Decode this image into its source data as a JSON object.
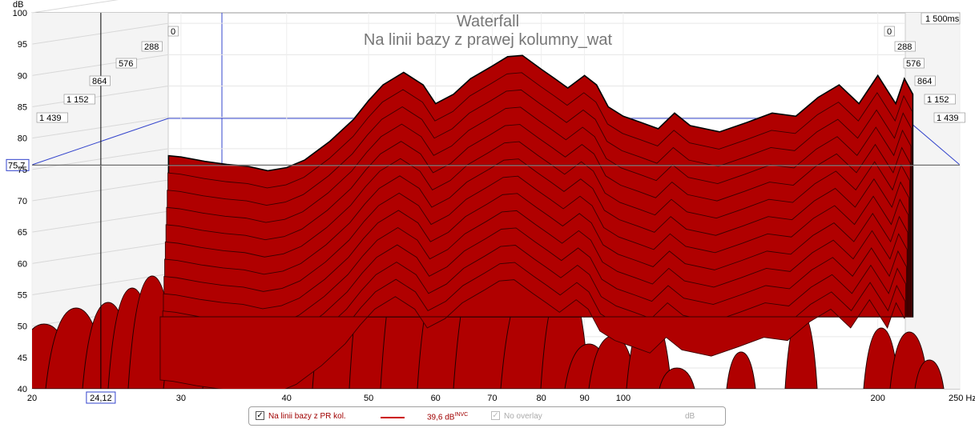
{
  "chart_data": {
    "type": "waterfall",
    "title": "Waterfall",
    "subtitle": "Na linii bazy z prawej kolumny_wat",
    "ylabel": "dB",
    "xunit": "Hz",
    "x_scale": "log",
    "xlim": [
      20,
      250
    ],
    "ylim": [
      40,
      100
    ],
    "x_ticks": [
      20,
      30,
      40,
      50,
      60,
      70,
      80,
      90,
      100,
      200,
      250
    ],
    "x_tick_labels": [
      "20",
      "30",
      "40",
      "50",
      "60",
      "70",
      "80",
      "90",
      "100",
      "200",
      "250 Hz"
    ],
    "y_ticks": [
      40,
      45,
      50,
      55,
      60,
      65,
      70,
      75,
      80,
      85,
      90,
      95,
      100
    ],
    "y_tick_labels": [
      "40",
      "45",
      "50",
      "55",
      "60",
      "65",
      "70",
      "75",
      "80",
      "85",
      "90",
      "95",
      "100"
    ],
    "depth_tick_labels": [
      "0",
      "288",
      "576",
      "864",
      "1 152",
      "1 439"
    ],
    "depth_end_label": "1 500ms",
    "cursor": {
      "x_label": "24,12",
      "y_label": "75,7"
    },
    "front_slice": {
      "name": "Na linii bazy z PR kol.",
      "color": "#cc0000",
      "x": [
        29,
        30,
        32,
        34,
        36,
        38,
        40,
        42,
        45,
        48,
        50,
        52,
        55,
        58,
        60,
        63,
        66,
        70,
        73,
        76,
        80,
        83,
        86,
        90,
        93,
        96,
        100,
        105,
        110,
        115,
        120,
        130,
        140,
        150,
        160,
        170,
        180,
        190,
        200,
        210,
        215,
        220
      ],
      "values": [
        77.2,
        77.0,
        76.3,
        75.8,
        75.5,
        74.8,
        75.3,
        76.5,
        79.5,
        83.0,
        86.0,
        88.5,
        90.5,
        88.5,
        85.5,
        87.0,
        89.5,
        91.5,
        93.0,
        93.2,
        91.0,
        89.5,
        88.0,
        90.0,
        88.5,
        85.0,
        83.5,
        82.5,
        81.5,
        84.0,
        82.0,
        81.0,
        82.5,
        84.0,
        83.5,
        86.5,
        88.5,
        85.5,
        90.0,
        85.5,
        89.5,
        87.0
      ]
    },
    "grid": true,
    "legend_position": "bottom"
  },
  "legend": {
    "series_name": "Na linii bazy z PR kol.",
    "series_value": "39,6 dB",
    "series_value_sup": "INVC",
    "overlay_label": "No overlay",
    "overlay_unit": "dB",
    "checkmark": "✓"
  }
}
